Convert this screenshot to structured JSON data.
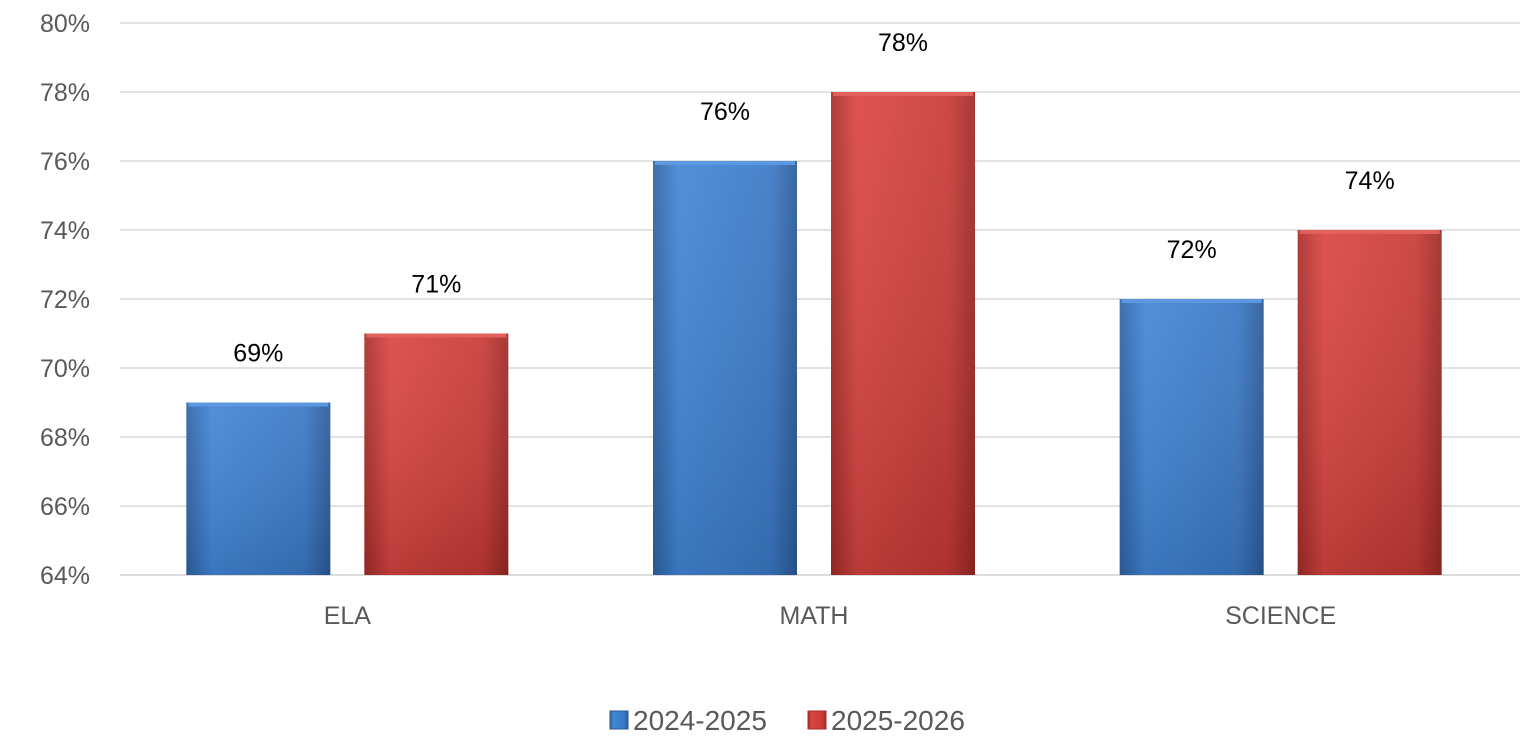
{
  "chart_data": {
    "type": "bar",
    "categories": [
      "ELA",
      "MATH",
      "SCIENCE"
    ],
    "series": [
      {
        "name": "2024-2025",
        "values": [
          69,
          76,
          72
        ],
        "labels": [
          "69%",
          "76%",
          "72%"
        ],
        "color": "#3d7cc9"
      },
      {
        "name": "2025-2026",
        "values": [
          71,
          78,
          74
        ],
        "labels": [
          "71%",
          "78%",
          "74%"
        ],
        "color": "#c83a36"
      }
    ],
    "ylim": [
      64,
      80
    ],
    "yticks": [
      64,
      66,
      68,
      70,
      72,
      74,
      76,
      78,
      80
    ],
    "ytick_labels": [
      "64%",
      "66%",
      "68%",
      "70%",
      "72%",
      "74%",
      "76%",
      "78%",
      "80%"
    ],
    "grid": true,
    "legend_position": "bottom",
    "title": "",
    "xlabel": "",
    "ylabel": ""
  }
}
